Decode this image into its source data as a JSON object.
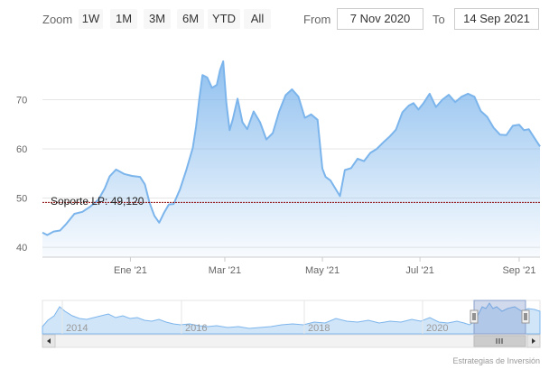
{
  "toolbar": {
    "zoom_label": "Zoom",
    "buttons": [
      "1W",
      "1M",
      "3M",
      "6M",
      "YTD",
      "All"
    ],
    "from_label": "From",
    "from_value": "7 Nov 2020",
    "to_label": "To",
    "to_value": "14 Sep 2021"
  },
  "credit": "Estrategias de Inversión",
  "chart_data": {
    "type": "area",
    "title": "",
    "xlabel": "",
    "ylabel": "",
    "ylim": [
      38,
      82
    ],
    "yticks": [
      40,
      50,
      60,
      70
    ],
    "x_tick_labels": [
      "Ene '21",
      "Mar '21",
      "May '21",
      "Jul '21",
      "Sep '21"
    ],
    "x_tick_dates": [
      "2021-01-01",
      "2021-03-01",
      "2021-05-01",
      "2021-07-01",
      "2021-09-01"
    ],
    "x_range": [
      "2020-11-07",
      "2021-09-14"
    ],
    "grid": true,
    "series": [
      {
        "x": [
          "2020-11-07",
          "2020-11-10",
          "2020-11-14",
          "2020-11-18",
          "2020-11-22",
          "2020-11-27",
          "2020-12-02",
          "2020-12-07",
          "2020-12-12",
          "2020-12-16",
          "2020-12-19",
          "2020-12-23",
          "2020-12-28",
          "2021-01-02",
          "2021-01-07",
          "2021-01-10",
          "2021-01-13",
          "2021-01-16",
          "2021-01-19",
          "2021-01-22",
          "2021-01-25",
          "2021-01-28",
          "2021-02-01",
          "2021-02-05",
          "2021-02-09",
          "2021-02-11",
          "2021-02-13",
          "2021-02-15",
          "2021-02-18",
          "2021-02-21",
          "2021-02-24",
          "2021-02-26",
          "2021-02-28",
          "2021-03-02",
          "2021-03-04",
          "2021-03-06",
          "2021-03-09",
          "2021-03-12",
          "2021-03-15",
          "2021-03-19",
          "2021-03-23",
          "2021-03-27",
          "2021-03-31",
          "2021-04-04",
          "2021-04-08",
          "2021-04-12",
          "2021-04-16",
          "2021-04-20",
          "2021-04-24",
          "2021-04-28",
          "2021-05-01",
          "2021-05-03",
          "2021-05-06",
          "2021-05-09",
          "2021-05-12",
          "2021-05-15",
          "2021-05-19",
          "2021-05-23",
          "2021-05-27",
          "2021-05-31",
          "2021-06-04",
          "2021-06-08",
          "2021-06-12",
          "2021-06-16",
          "2021-06-20",
          "2021-06-24",
          "2021-06-27",
          "2021-06-30",
          "2021-07-03",
          "2021-07-07",
          "2021-07-11",
          "2021-07-15",
          "2021-07-19",
          "2021-07-23",
          "2021-07-27",
          "2021-07-31",
          "2021-08-04",
          "2021-08-08",
          "2021-08-12",
          "2021-08-16",
          "2021-08-20",
          "2021-08-24",
          "2021-08-28",
          "2021-09-01",
          "2021-09-04",
          "2021-09-07",
          "2021-09-10",
          "2021-09-14"
        ],
        "values": [
          43.0,
          42.5,
          43.2,
          43.4,
          44.8,
          46.8,
          47.2,
          48.3,
          49.7,
          52.0,
          54.4,
          55.8,
          54.9,
          54.5,
          54.3,
          52.8,
          49.0,
          46.4,
          45.0,
          47.0,
          48.7,
          48.8,
          51.8,
          55.8,
          60.2,
          64.5,
          70.0,
          75.0,
          74.5,
          72.4,
          73.0,
          76.0,
          77.8,
          69.3,
          63.8,
          66.0,
          70.2,
          65.4,
          64.0,
          67.6,
          65.4,
          61.9,
          63.2,
          67.6,
          70.9,
          72.1,
          70.6,
          66.3,
          67.0,
          65.9,
          56.0,
          54.3,
          53.6,
          52.0,
          50.4,
          55.7,
          56.1,
          58.0,
          57.5,
          59.2,
          60.0,
          61.3,
          62.5,
          63.9,
          67.4,
          68.8,
          69.3,
          68.0,
          69.2,
          71.2,
          68.5,
          70.0,
          71.0,
          69.5,
          70.6,
          71.2,
          70.6,
          67.7,
          66.5,
          64.3,
          62.9,
          62.8,
          64.7,
          64.9,
          63.8,
          64.0,
          62.5,
          60.5
        ]
      }
    ],
    "plot_lines": [
      {
        "label": "Soporte LP: 49,120",
        "value": 49.12,
        "color": "#8b0000"
      }
    ],
    "navigator": {
      "x_tick_labels": [
        "2014",
        "2016",
        "2018",
        "2020"
      ]
    }
  }
}
